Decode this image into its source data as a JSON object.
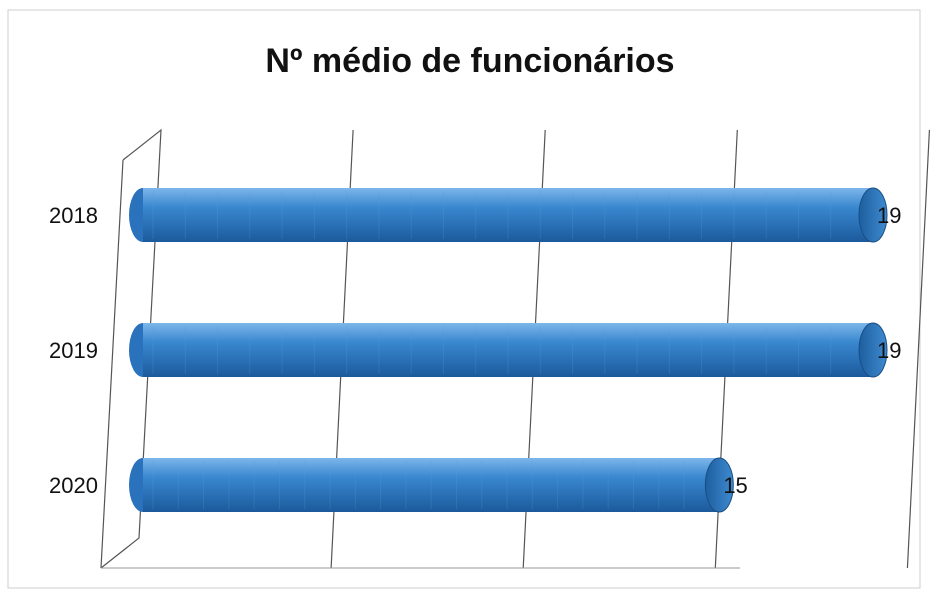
{
  "chart_data": {
    "type": "bar",
    "orientation": "horizontal",
    "title": "Nº médio de funcionários",
    "categories": [
      "2018",
      "2019",
      "2020"
    ],
    "values": [
      19,
      19,
      15
    ],
    "xlim": [
      0,
      20
    ],
    "grid": true,
    "legend": "none",
    "bar_color": "#2e7bc6"
  }
}
